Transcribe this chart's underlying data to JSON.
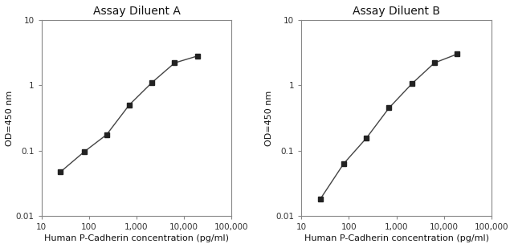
{
  "chart_A": {
    "title": "Assay Diluent A",
    "x": [
      25,
      78,
      234,
      703,
      2109,
      6328,
      19000
    ],
    "y": [
      0.047,
      0.095,
      0.175,
      0.5,
      1.1,
      2.2,
      2.8
    ],
    "xlabel": "Human P-Cadherin concentration (pg/ml)",
    "ylabel": "OD=450 nm",
    "xlim": [
      10,
      100000
    ],
    "ylim": [
      0.01,
      10
    ]
  },
  "chart_B": {
    "title": "Assay Diluent B",
    "x": [
      25,
      78,
      234,
      703,
      2109,
      6328,
      19000
    ],
    "y": [
      0.018,
      0.063,
      0.155,
      0.45,
      1.05,
      2.2,
      3.0
    ],
    "xlabel": "Human P-Cadherin concentration (pg/ml)",
    "ylabel": "OD=450 nm",
    "xlim": [
      10,
      100000
    ],
    "ylim": [
      0.01,
      10
    ]
  },
  "xtick_locs": [
    10,
    100,
    1000,
    10000,
    100000
  ],
  "xtick_labels": [
    "10",
    "100",
    "1,000",
    "10,000",
    "100,000"
  ],
  "ytick_locs": [
    0.01,
    0.1,
    1,
    10
  ],
  "ytick_labels": [
    "0.01",
    "0.1",
    "1",
    "10"
  ],
  "line_color": "#444444",
  "marker": "s",
  "marker_size": 4,
  "marker_color": "#222222",
  "bg_color": "#ffffff",
  "title_fontsize": 10,
  "label_fontsize": 8,
  "tick_fontsize": 7.5
}
